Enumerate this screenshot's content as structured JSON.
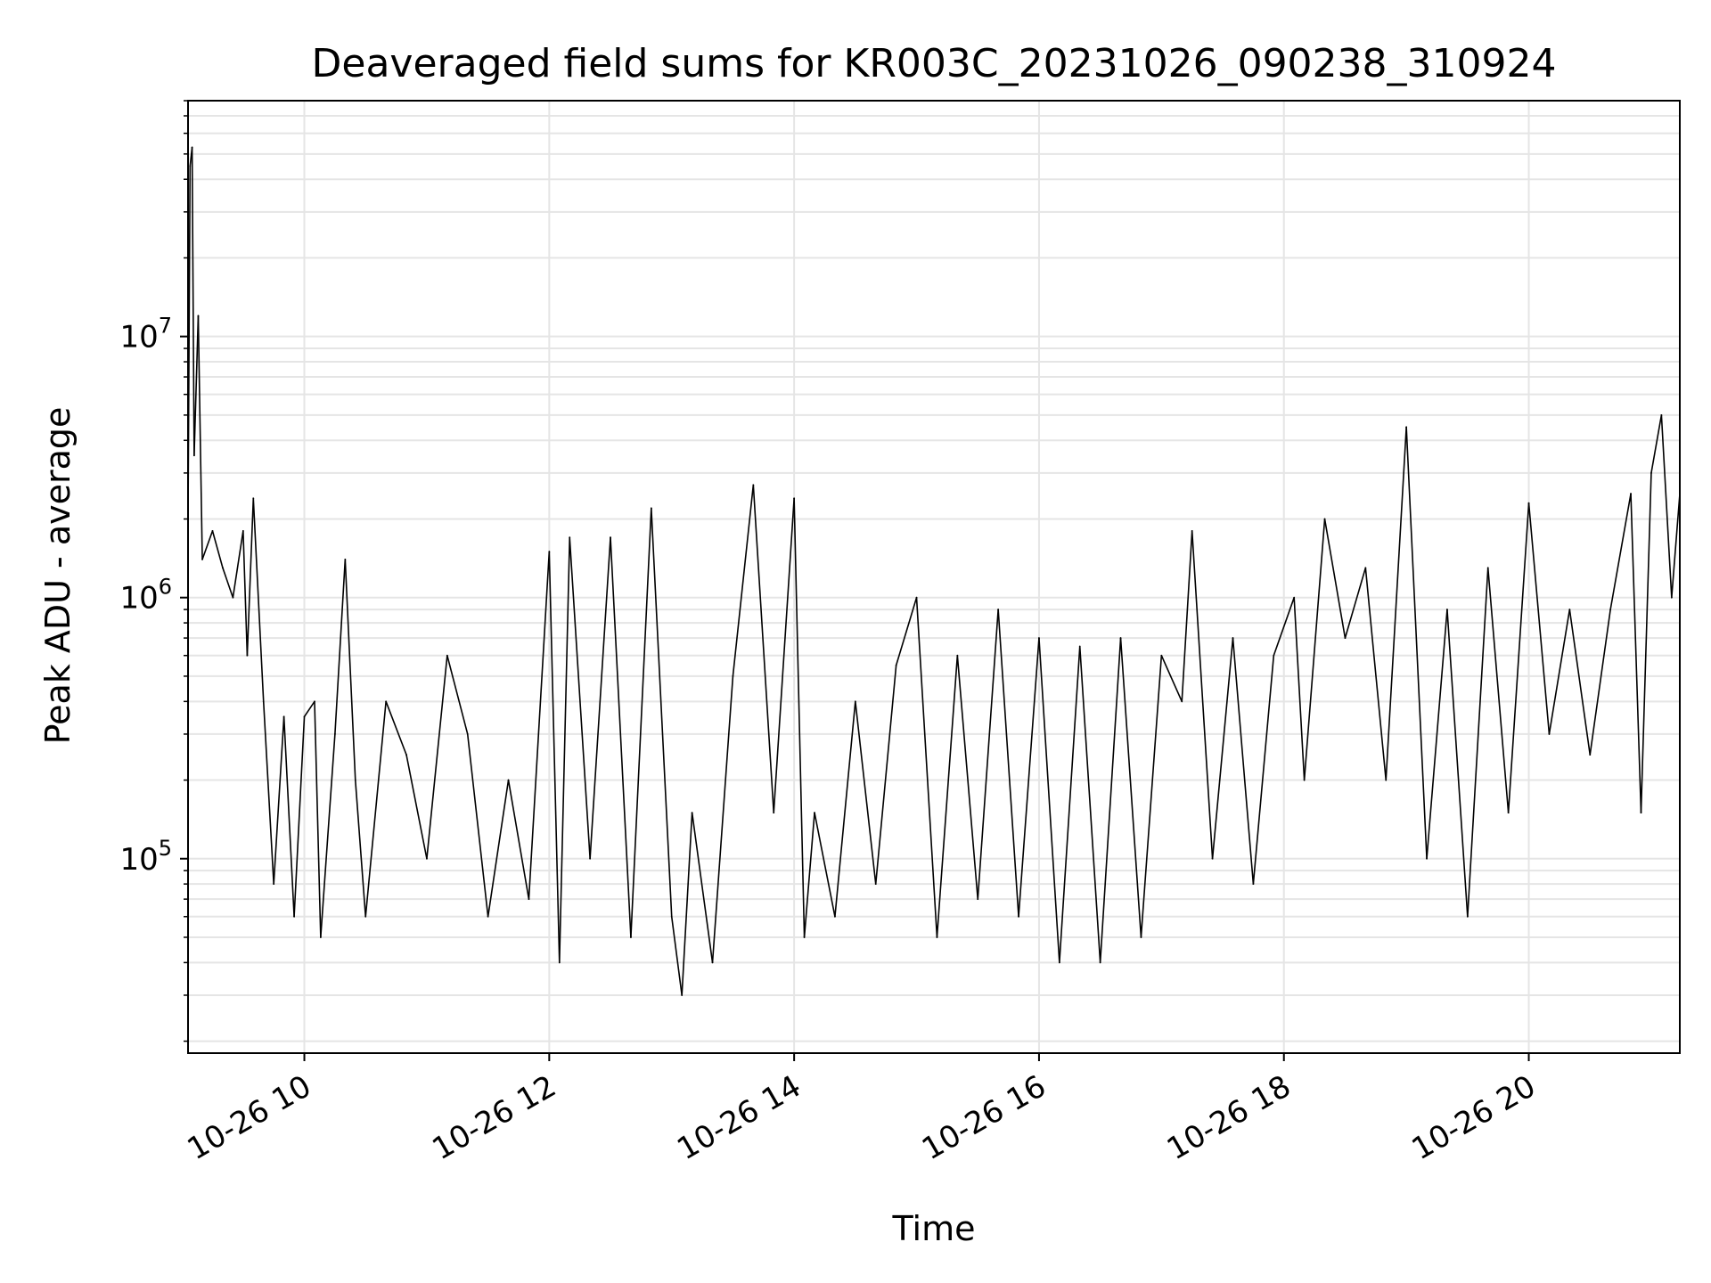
{
  "chart_data": {
    "type": "line",
    "title": "Deaveraged field sums for KR003C_20231026_090238_310924",
    "xlabel": "Time",
    "ylabel": "Peak ADU - average",
    "x_axis": "time",
    "xlim": [
      "2023-10-26 09:03",
      "2023-10-26 21:14"
    ],
    "x_ticks": [
      {
        "time": "2023-10-26 10:00",
        "label": "10-26 10"
      },
      {
        "time": "2023-10-26 12:00",
        "label": "10-26 12"
      },
      {
        "time": "2023-10-26 14:00",
        "label": "10-26 14"
      },
      {
        "time": "2023-10-26 16:00",
        "label": "10-26 16"
      },
      {
        "time": "2023-10-26 18:00",
        "label": "10-26 18"
      },
      {
        "time": "2023-10-26 20:00",
        "label": "10-26 20"
      }
    ],
    "y_scale": "log",
    "ylim": [
      18000,
      80000000
    ],
    "y_ticks": [
      {
        "value": 100000,
        "base": "10",
        "exp": "5"
      },
      {
        "value": 1000000,
        "base": "10",
        "exp": "6"
      },
      {
        "value": 10000000,
        "base": "10",
        "exp": "7"
      }
    ],
    "grid": true,
    "series_color": "#000000",
    "grid_color": "#e5e5e5",
    "series": [
      {
        "points": [
          [
            "2023-10-26 09:03",
            2000000
          ],
          [
            "2023-10-26 09:04",
            45000000
          ],
          [
            "2023-10-26 09:05",
            53000000
          ],
          [
            "2023-10-26 09:06",
            3500000
          ],
          [
            "2023-10-26 09:08",
            12000000
          ],
          [
            "2023-10-26 09:10",
            1400000
          ],
          [
            "2023-10-26 09:15",
            1800000
          ],
          [
            "2023-10-26 09:20",
            1300000
          ],
          [
            "2023-10-26 09:25",
            1000000
          ],
          [
            "2023-10-26 09:30",
            1800000
          ],
          [
            "2023-10-26 09:32",
            600000
          ],
          [
            "2023-10-26 09:35",
            2400000
          ],
          [
            "2023-10-26 09:40",
            400000
          ],
          [
            "2023-10-26 09:45",
            80000
          ],
          [
            "2023-10-26 09:50",
            350000
          ],
          [
            "2023-10-26 09:55",
            60000
          ],
          [
            "2023-10-26 10:00",
            350000
          ],
          [
            "2023-10-26 10:05",
            400000
          ],
          [
            "2023-10-26 10:08",
            50000
          ],
          [
            "2023-10-26 10:15",
            300000
          ],
          [
            "2023-10-26 10:20",
            1400000
          ],
          [
            "2023-10-26 10:25",
            200000
          ],
          [
            "2023-10-26 10:30",
            60000
          ],
          [
            "2023-10-26 10:40",
            400000
          ],
          [
            "2023-10-26 10:50",
            250000
          ],
          [
            "2023-10-26 11:00",
            100000
          ],
          [
            "2023-10-26 11:10",
            600000
          ],
          [
            "2023-10-26 11:20",
            300000
          ],
          [
            "2023-10-26 11:30",
            60000
          ],
          [
            "2023-10-26 11:40",
            200000
          ],
          [
            "2023-10-26 11:50",
            70000
          ],
          [
            "2023-10-26 12:00",
            1500000
          ],
          [
            "2023-10-26 12:05",
            40000
          ],
          [
            "2023-10-26 12:10",
            1700000
          ],
          [
            "2023-10-26 12:20",
            100000
          ],
          [
            "2023-10-26 12:30",
            1700000
          ],
          [
            "2023-10-26 12:40",
            50000
          ],
          [
            "2023-10-26 12:50",
            2200000
          ],
          [
            "2023-10-26 13:00",
            60000
          ],
          [
            "2023-10-26 13:05",
            30000
          ],
          [
            "2023-10-26 13:10",
            150000
          ],
          [
            "2023-10-26 13:20",
            40000
          ],
          [
            "2023-10-26 13:30",
            500000
          ],
          [
            "2023-10-26 13:40",
            2700000
          ],
          [
            "2023-10-26 13:50",
            150000
          ],
          [
            "2023-10-26 14:00",
            2400000
          ],
          [
            "2023-10-26 14:05",
            50000
          ],
          [
            "2023-10-26 14:10",
            150000
          ],
          [
            "2023-10-26 14:20",
            60000
          ],
          [
            "2023-10-26 14:30",
            400000
          ],
          [
            "2023-10-26 14:40",
            80000
          ],
          [
            "2023-10-26 14:50",
            550000
          ],
          [
            "2023-10-26 15:00",
            1000000
          ],
          [
            "2023-10-26 15:10",
            50000
          ],
          [
            "2023-10-26 15:20",
            600000
          ],
          [
            "2023-10-26 15:30",
            70000
          ],
          [
            "2023-10-26 15:40",
            900000
          ],
          [
            "2023-10-26 15:50",
            60000
          ],
          [
            "2023-10-26 16:00",
            700000
          ],
          [
            "2023-10-26 16:10",
            40000
          ],
          [
            "2023-10-26 16:20",
            650000
          ],
          [
            "2023-10-26 16:30",
            40000
          ],
          [
            "2023-10-26 16:40",
            700000
          ],
          [
            "2023-10-26 16:50",
            50000
          ],
          [
            "2023-10-26 17:00",
            600000
          ],
          [
            "2023-10-26 17:10",
            400000
          ],
          [
            "2023-10-26 17:15",
            1800000
          ],
          [
            "2023-10-26 17:25",
            100000
          ],
          [
            "2023-10-26 17:35",
            700000
          ],
          [
            "2023-10-26 17:45",
            80000
          ],
          [
            "2023-10-26 17:55",
            600000
          ],
          [
            "2023-10-26 18:05",
            1000000
          ],
          [
            "2023-10-26 18:10",
            200000
          ],
          [
            "2023-10-26 18:20",
            2000000
          ],
          [
            "2023-10-26 18:30",
            700000
          ],
          [
            "2023-10-26 18:40",
            1300000
          ],
          [
            "2023-10-26 18:50",
            200000
          ],
          [
            "2023-10-26 19:00",
            4500000
          ],
          [
            "2023-10-26 19:10",
            100000
          ],
          [
            "2023-10-26 19:20",
            900000
          ],
          [
            "2023-10-26 19:30",
            60000
          ],
          [
            "2023-10-26 19:40",
            1300000
          ],
          [
            "2023-10-26 19:50",
            150000
          ],
          [
            "2023-10-26 20:00",
            2300000
          ],
          [
            "2023-10-26 20:10",
            300000
          ],
          [
            "2023-10-26 20:20",
            900000
          ],
          [
            "2023-10-26 20:30",
            250000
          ],
          [
            "2023-10-26 20:40",
            900000
          ],
          [
            "2023-10-26 20:50",
            2500000
          ],
          [
            "2023-10-26 20:55",
            150000
          ],
          [
            "2023-10-26 21:00",
            3000000
          ],
          [
            "2023-10-26 21:05",
            5000000
          ],
          [
            "2023-10-26 21:10",
            1000000
          ],
          [
            "2023-10-26 21:14",
            2500000
          ]
        ]
      }
    ]
  }
}
